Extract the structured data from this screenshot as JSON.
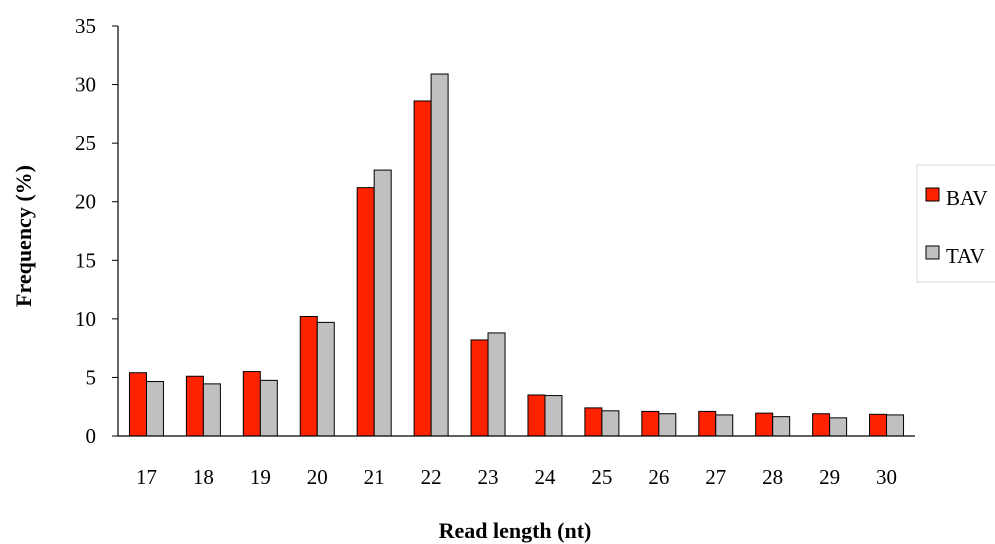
{
  "chart_data": {
    "type": "bar",
    "xlabel": "Read length (nt)",
    "ylabel": "Frequency (%)",
    "ylim": [
      0,
      35
    ],
    "yticks": [
      0,
      5,
      10,
      15,
      20,
      25,
      30,
      35
    ],
    "categories": [
      "17",
      "18",
      "19",
      "20",
      "21",
      "22",
      "23",
      "24",
      "25",
      "26",
      "27",
      "28",
      "29",
      "30"
    ],
    "series": [
      {
        "name": "BAV",
        "color": "#ff2200",
        "values": [
          5.4,
          5.1,
          5.5,
          10.2,
          21.2,
          28.6,
          8.2,
          3.5,
          2.4,
          2.1,
          2.1,
          1.95,
          1.9,
          1.85
        ]
      },
      {
        "name": "TAV",
        "color": "#c0c0c0",
        "values": [
          4.65,
          4.45,
          4.75,
          9.7,
          22.7,
          30.9,
          8.8,
          3.45,
          2.15,
          1.9,
          1.8,
          1.65,
          1.55,
          1.8
        ]
      }
    ],
    "grid": false,
    "legend_position": "right"
  }
}
